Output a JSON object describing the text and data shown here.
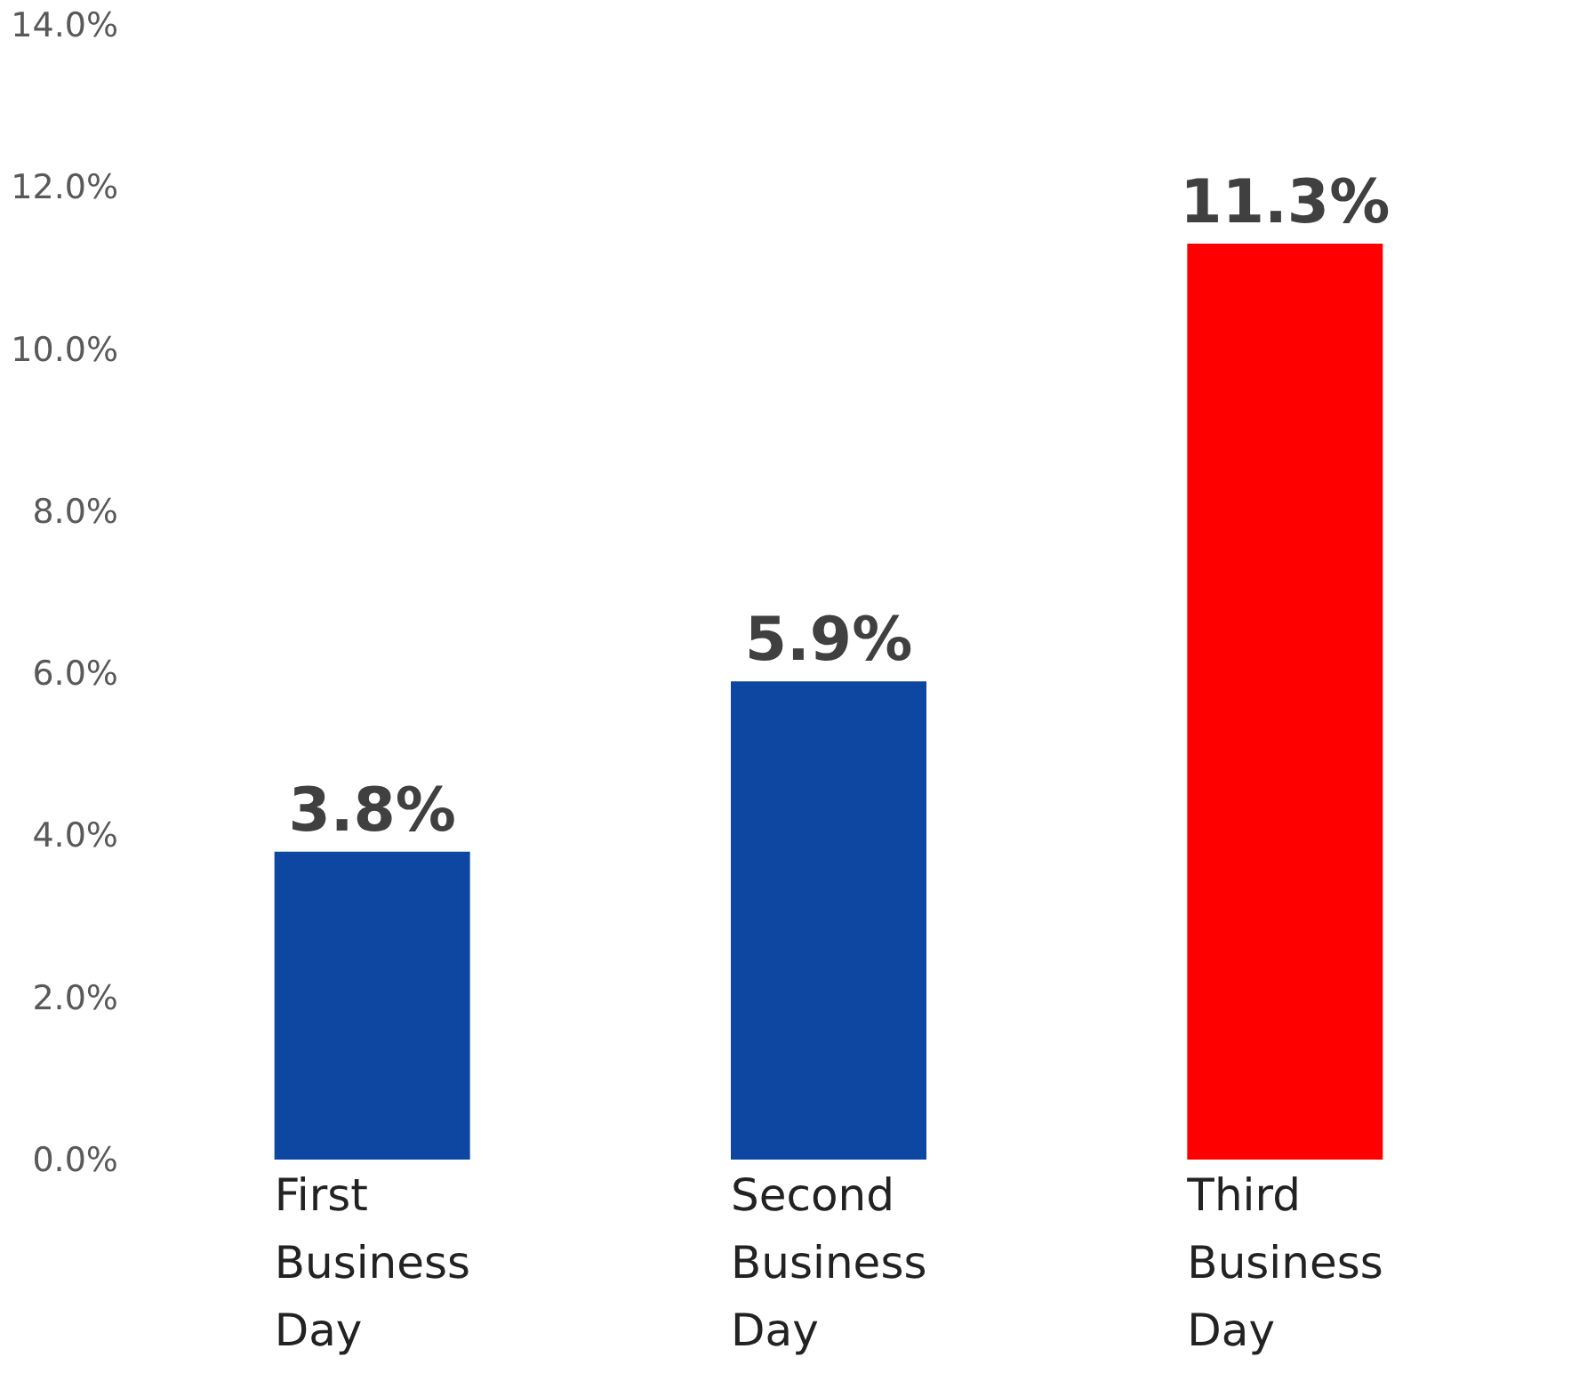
{
  "chart_data": {
    "type": "bar",
    "categories": [
      "First Business Day",
      "Second Business Day",
      "Third Business Day"
    ],
    "values": [
      3.8,
      5.9,
      11.3
    ],
    "colors": [
      "#0d47a1",
      "#0d47a1",
      "#ff0000"
    ],
    "value_labels": [
      "3.8%",
      "5.9%",
      "11.3%"
    ],
    "ylim": [
      0,
      14
    ],
    "yticks": [
      {
        "value": 0,
        "label": "0.0%"
      },
      {
        "value": 2,
        "label": "2.0%"
      },
      {
        "value": 4,
        "label": "4.0%"
      },
      {
        "value": 6,
        "label": "6.0%"
      },
      {
        "value": 8,
        "label": "8.0%"
      },
      {
        "value": 10,
        "label": "10.0%"
      },
      {
        "value": 12,
        "label": "12.0%"
      },
      {
        "value": 14,
        "label": "14.0%"
      }
    ],
    "grid": false
  }
}
